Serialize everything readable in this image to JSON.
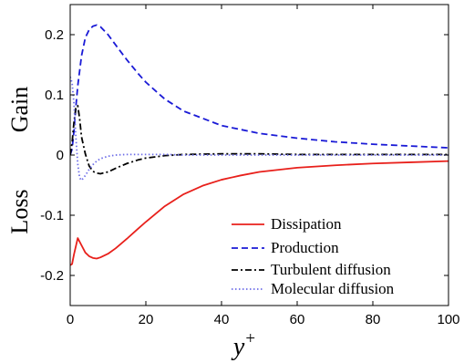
{
  "chart_data": {
    "type": "line",
    "title": "",
    "xlabel": "y",
    "xlabel_sup": "+",
    "ylabel_top": "Gain",
    "ylabel_bottom": "Loss",
    "xlim": [
      0,
      100
    ],
    "ylim": [
      -0.25,
      0.25
    ],
    "xticks": [
      0,
      20,
      40,
      60,
      80,
      100
    ],
    "xtick_labels": [
      "0",
      "20",
      "40",
      "60",
      "80",
      "100"
    ],
    "yticks": [
      -0.2,
      -0.1,
      0,
      0.1,
      0.2
    ],
    "ytick_labels": [
      "-0.2",
      "-0.1",
      "0",
      "0.1",
      "0.2"
    ],
    "grid": false,
    "legend_position": "bottom-right",
    "series": [
      {
        "name": "Dissipation",
        "color": "#e8201b",
        "dash": "solid",
        "x": [
          0,
          0.5,
          1,
          2,
          3,
          4,
          5,
          6,
          7,
          8,
          10,
          12,
          15,
          18,
          20,
          25,
          30,
          35,
          40,
          45,
          50,
          60,
          70,
          80,
          90,
          100
        ],
        "y": [
          -0.183,
          -0.181,
          -0.165,
          -0.138,
          -0.15,
          -0.162,
          -0.168,
          -0.171,
          -0.172,
          -0.17,
          -0.164,
          -0.155,
          -0.139,
          -0.122,
          -0.111,
          -0.085,
          -0.065,
          -0.051,
          -0.041,
          -0.034,
          -0.028,
          -0.021,
          -0.017,
          -0.014,
          -0.012,
          -0.01
        ]
      },
      {
        "name": "Production",
        "color": "#1a1ad6",
        "dash": "dashed",
        "x": [
          0,
          0.5,
          1,
          1.5,
          2,
          3,
          4,
          5,
          6,
          7,
          8,
          10,
          12,
          15,
          18,
          20,
          25,
          30,
          40,
          50,
          60,
          70,
          80,
          90,
          100
        ],
        "y": [
          0,
          0.01,
          0.04,
          0.08,
          0.115,
          0.165,
          0.195,
          0.208,
          0.214,
          0.216,
          0.213,
          0.2,
          0.183,
          0.158,
          0.135,
          0.121,
          0.093,
          0.073,
          0.049,
          0.036,
          0.028,
          0.022,
          0.018,
          0.015,
          0.012
        ]
      },
      {
        "name": "Turbulent diffusion",
        "color": "#000000",
        "dash": "dashdot",
        "x": [
          0,
          0.5,
          1,
          1.5,
          2,
          2.5,
          3,
          4,
          5,
          6,
          7,
          8,
          10,
          12,
          15,
          18,
          20,
          25,
          30,
          40,
          50,
          60,
          80,
          100
        ],
        "y": [
          0,
          0.02,
          0.055,
          0.078,
          0.082,
          0.06,
          0.03,
          0.002,
          -0.018,
          -0.027,
          -0.03,
          -0.031,
          -0.028,
          -0.022,
          -0.014,
          -0.008,
          -0.005,
          -0.001,
          0.001,
          0.002,
          0.002,
          0.001,
          0.001,
          0.001
        ]
      },
      {
        "name": "Molecular diffusion",
        "color": "#6e6ee8",
        "dash": "dotted",
        "x": [
          0,
          0.5,
          1,
          1.5,
          2,
          2.5,
          3,
          4,
          5,
          6,
          7,
          8,
          10,
          12,
          15,
          20,
          25,
          30,
          40,
          60,
          100
        ],
        "y": [
          0.13,
          0.12,
          0.085,
          0.03,
          -0.015,
          -0.038,
          -0.042,
          -0.034,
          -0.024,
          -0.016,
          -0.01,
          -0.006,
          -0.002,
          0.0,
          0.001,
          0.001,
          0.001,
          0.0,
          0.0,
          0.0,
          0.0
        ]
      }
    ]
  }
}
